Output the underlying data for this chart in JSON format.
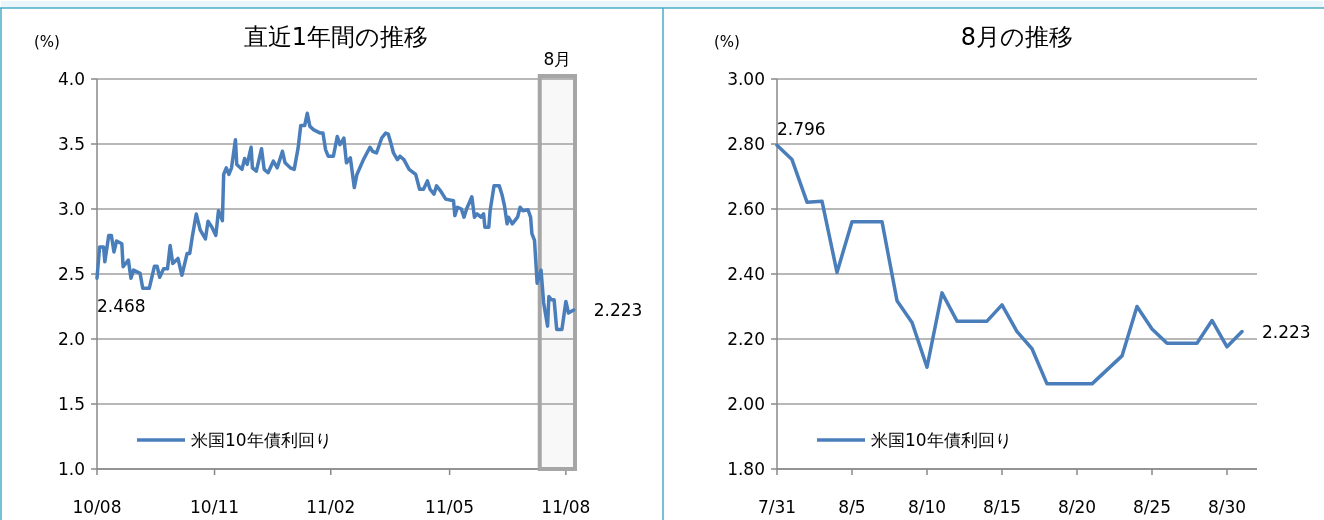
{
  "chart_data": [
    {
      "type": "line",
      "title": "直近1年間の推移",
      "ylabel": "(%)",
      "x": [
        "2010-08-31",
        "2010-09-02",
        "2010-09-05",
        "2010-09-06",
        "2010-09-09",
        "2010-09-11",
        "2010-09-13",
        "2010-09-15",
        "2010-09-19",
        "2010-09-20",
        "2010-09-24",
        "2010-09-26",
        "2010-09-28",
        "2010-10-03",
        "2010-10-05",
        "2010-10-10",
        "2010-10-14",
        "2010-10-16",
        "2010-10-18",
        "2010-10-21",
        "2010-10-24",
        "2010-10-26",
        "2010-10-28",
        "2010-11-01",
        "2010-11-04",
        "2010-11-08",
        "2010-11-10",
        "2010-11-12",
        "2010-11-15",
        "2010-11-18",
        "2010-11-22",
        "2010-11-24",
        "2010-11-27",
        "2010-11-30",
        "2010-12-02",
        "2010-12-05",
        "2010-12-06",
        "2010-12-08",
        "2010-12-10",
        "2010-12-12",
        "2010-12-15",
        "2010-12-16",
        "2010-12-20",
        "2010-12-22",
        "2010-12-24",
        "2010-12-27",
        "2010-12-28",
        "2010-12-31",
        "2011-01-04",
        "2011-01-06",
        "2011-01-09",
        "2011-01-13",
        "2011-01-16",
        "2011-01-20",
        "2011-01-22",
        "2011-01-26",
        "2011-01-29",
        "2011-02-01",
        "2011-02-03",
        "2011-02-06",
        "2011-02-08",
        "2011-02-10",
        "2011-02-13",
        "2011-02-18",
        "2011-02-20",
        "2011-02-22",
        "2011-02-24",
        "2011-02-28",
        "2011-03-03",
        "2011-03-05",
        "2011-03-06",
        "2011-03-08",
        "2011-03-10",
        "2011-03-13",
        "2011-03-16",
        "2011-03-18",
        "2011-03-23",
        "2011-03-28",
        "2011-03-30",
        "2011-04-02",
        "2011-04-06",
        "2011-04-09",
        "2011-04-11",
        "2011-04-13",
        "2011-04-15",
        "2011-04-18",
        "2011-04-20",
        "2011-04-23",
        "2011-04-27",
        "2011-05-02",
        "2011-05-05",
        "2011-05-08",
        "2011-05-11",
        "2011-05-13",
        "2011-05-16",
        "2011-05-18",
        "2011-05-21",
        "2011-05-25",
        "2011-05-31",
        "2011-06-01",
        "2011-06-03",
        "2011-06-06",
        "2011-06-08",
        "2011-06-10",
        "2011-06-14",
        "2011-06-16",
        "2011-06-18",
        "2011-06-21",
        "2011-06-23",
        "2011-06-24",
        "2011-06-27",
        "2011-06-28",
        "2011-07-01",
        "2011-07-05",
        "2011-07-07",
        "2011-07-09",
        "2011-07-11",
        "2011-07-12",
        "2011-07-15",
        "2011-07-19",
        "2011-07-21",
        "2011-07-23",
        "2011-07-27",
        "2011-07-29",
        "2011-07-30",
        "2011-08-01",
        "2011-08-03",
        "2011-08-06",
        "2011-08-08",
        "2011-08-11",
        "2011-08-12",
        "2011-08-14",
        "2011-08-16",
        "2011-08-18",
        "2011-08-22",
        "2011-08-25",
        "2011-08-27",
        "2011-08-31"
      ],
      "series": [
        {
          "name": "米国10年債利回り",
          "color": "#4a7ebb",
          "values": [
            2.468,
            2.708,
            2.708,
            2.594,
            2.797,
            2.797,
            2.67,
            2.754,
            2.733,
            2.556,
            2.607,
            2.467,
            2.53,
            2.505,
            2.39,
            2.39,
            2.56,
            2.56,
            2.475,
            2.54,
            2.54,
            2.72,
            2.58,
            2.62,
            2.49,
            2.657,
            2.657,
            2.789,
            2.962,
            2.84,
            2.77,
            2.906,
            2.86,
            2.797,
            2.987,
            2.91,
            3.266,
            3.317,
            3.266,
            3.317,
            3.533,
            3.343,
            3.305,
            3.388,
            3.343,
            3.475,
            3.317,
            3.292,
            3.464,
            3.305,
            3.279,
            3.368,
            3.317,
            3.444,
            3.355,
            3.317,
            3.305,
            3.47,
            3.642,
            3.642,
            3.736,
            3.635,
            3.609,
            3.584,
            3.584,
            3.457,
            3.406,
            3.406,
            3.558,
            3.495,
            3.508,
            3.546,
            3.355,
            3.393,
            3.165,
            3.266,
            3.38,
            3.475,
            3.444,
            3.431,
            3.546,
            3.584,
            3.576,
            3.508,
            3.431,
            3.38,
            3.406,
            3.38,
            3.305,
            3.266,
            3.152,
            3.152,
            3.216,
            3.152,
            3.114,
            3.178,
            3.14,
            3.076,
            3.063,
            2.949,
            3.013,
            3.0,
            2.937,
            3.0,
            3.094,
            2.937,
            2.962,
            2.937,
            2.962,
            2.86,
            2.86,
            2.987,
            3.178,
            3.178,
            3.114,
            3.025,
            2.886,
            2.937,
            2.886,
            2.937,
            3.013,
            2.987,
            2.994,
            2.937,
            2.81,
            2.759,
            2.429,
            2.53,
            2.277,
            2.099,
            2.327,
            2.302,
            2.302,
            2.074,
            2.074,
            2.289,
            2.2,
            2.223
          ]
        }
      ],
      "xlim": [
        "2010-08-31",
        "2011-09-01"
      ],
      "xticks": [
        {
          "value": "2010-08-31",
          "label": "10/08"
        },
        {
          "value": "2010-11-29",
          "label": "10/11"
        },
        {
          "value": "2011-02-26",
          "label": "11/02"
        },
        {
          "value": "2011-05-28",
          "label": "11/05"
        },
        {
          "value": "2011-08-25",
          "label": "11/08"
        }
      ],
      "ylim": [
        1,
        4
      ],
      "yticks": [
        {
          "value": 1,
          "label": "1.0"
        },
        {
          "value": 1.5,
          "label": "1.5"
        },
        {
          "value": 2,
          "label": "2.0"
        },
        {
          "value": 2.5,
          "label": "2.5"
        },
        {
          "value": 3,
          "label": "3.0"
        },
        {
          "value": 3.5,
          "label": "3.5"
        },
        {
          "value": 4,
          "label": "4.0"
        }
      ],
      "grid": "y",
      "legend": "bottom left",
      "marker": "none",
      "line_style": "solid",
      "bands": [
        {
          "axis": "x",
          "from": "2011-08-05",
          "to": "2011-09-01",
          "label": "8月",
          "color": "#a6a6a6"
        }
      ],
      "annotations": [
        {
          "text": "2.468",
          "x": "2010-08-31",
          "y": 2.468
        },
        {
          "text": "2.223",
          "x": "2011-08-31",
          "y": 2.223
        }
      ]
    },
    {
      "type": "line",
      "title": "8月の推移",
      "ylabel": "(%)",
      "x": [
        "--07-31",
        "--08-01",
        "--08-02",
        "--08-03",
        "--08-04",
        "--08-05",
        "--08-07",
        "--08-08",
        "--08-09",
        "--08-10",
        "--08-11",
        "--08-12",
        "--08-14",
        "--08-15",
        "--08-16",
        "--08-17",
        "--08-18",
        "--08-21",
        "--08-23",
        "--08-24",
        "--08-25",
        "--08-26",
        "--08-28",
        "--08-29",
        "--08-30",
        "--08-31"
      ],
      "series": [
        {
          "name": "米国10年債利回り",
          "color": "#4a7ebb",
          "values": [
            2.796,
            2.752,
            2.621,
            2.624,
            2.405,
            2.561,
            2.561,
            2.318,
            2.251,
            2.113,
            2.342,
            2.255,
            2.255,
            2.305,
            2.223,
            2.17,
            2.062,
            2.062,
            2.148,
            2.3,
            2.231,
            2.187,
            2.187,
            2.257,
            2.176,
            2.223
          ]
        }
      ],
      "xlim": [
        "--07-31",
        "--09-01"
      ],
      "xticks": [
        {
          "value": "--07-31",
          "label": "7/31"
        },
        {
          "value": "--08-05",
          "label": "8/5"
        },
        {
          "value": "--08-10",
          "label": "8/10"
        },
        {
          "value": "--08-15",
          "label": "8/15"
        },
        {
          "value": "--08-20",
          "label": "8/20"
        },
        {
          "value": "--08-25",
          "label": "8/25"
        },
        {
          "value": "--08-30",
          "label": "8/30"
        }
      ],
      "ylim": [
        1.8,
        3.0
      ],
      "yticks": [
        {
          "value": 1.8,
          "label": "1.80"
        },
        {
          "value": 2.0,
          "label": "2.00"
        },
        {
          "value": 2.2,
          "label": "2.20"
        },
        {
          "value": 2.4,
          "label": "2.40"
        },
        {
          "value": 2.6,
          "label": "2.60"
        },
        {
          "value": 2.8,
          "label": "2.80"
        },
        {
          "value": 3.0,
          "label": "3.00"
        }
      ],
      "grid": "y",
      "legend": "bottom left",
      "marker": "none",
      "line_style": "solid",
      "annotations": [
        {
          "text": "2.796",
          "x": "--07-31",
          "y": 2.796
        },
        {
          "text": "2.223",
          "x": "--08-31",
          "y": 2.223
        }
      ]
    }
  ]
}
